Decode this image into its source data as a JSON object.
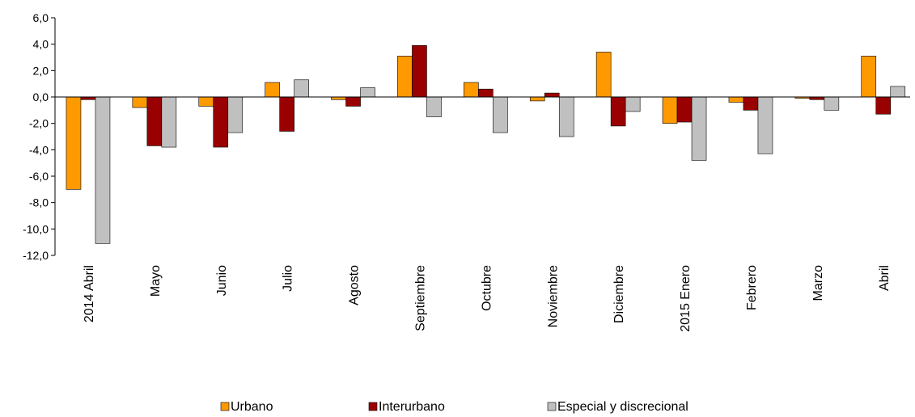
{
  "chart_data": {
    "type": "bar",
    "categories": [
      "2014 Abril",
      "Mayo",
      "Junio",
      "Julio",
      "Agosto",
      "Septiembre",
      "Octubre",
      "Noviembre",
      "Diciembre",
      "2015  Enero",
      "Febrero",
      "Marzo",
      "Abril"
    ],
    "series": [
      {
        "name": "Urbano",
        "color": "#FF9900",
        "values": [
          -7.0,
          -0.8,
          -0.7,
          1.1,
          -0.2,
          3.1,
          1.1,
          -0.3,
          3.4,
          -2.0,
          -0.4,
          -0.1,
          3.1
        ]
      },
      {
        "name": "Interurbano",
        "color": "#990000",
        "values": [
          -0.2,
          -3.7,
          -3.8,
          -2.6,
          -0.7,
          3.9,
          0.6,
          0.3,
          -2.2,
          -1.9,
          -1.0,
          -0.2,
          -1.3
        ]
      },
      {
        "name": "Especial y discrecional",
        "color": "#C0C0C0",
        "values": [
          -11.1,
          -3.8,
          -2.7,
          1.3,
          0.7,
          -1.5,
          -2.7,
          -3.0,
          -1.1,
          -4.8,
          -4.3,
          -1.0,
          0.8
        ]
      }
    ],
    "yticks": [
      "6,0",
      "4,0",
      "2,0",
      "0,0",
      "-2,0",
      "-4,0",
      "-6,0",
      "-8,0",
      "-10,0",
      "-12,0"
    ],
    "ylim": [
      -12,
      6
    ],
    "title": "",
    "xlabel": "",
    "ylabel": "",
    "grid": false,
    "legend_position": "bottom"
  }
}
